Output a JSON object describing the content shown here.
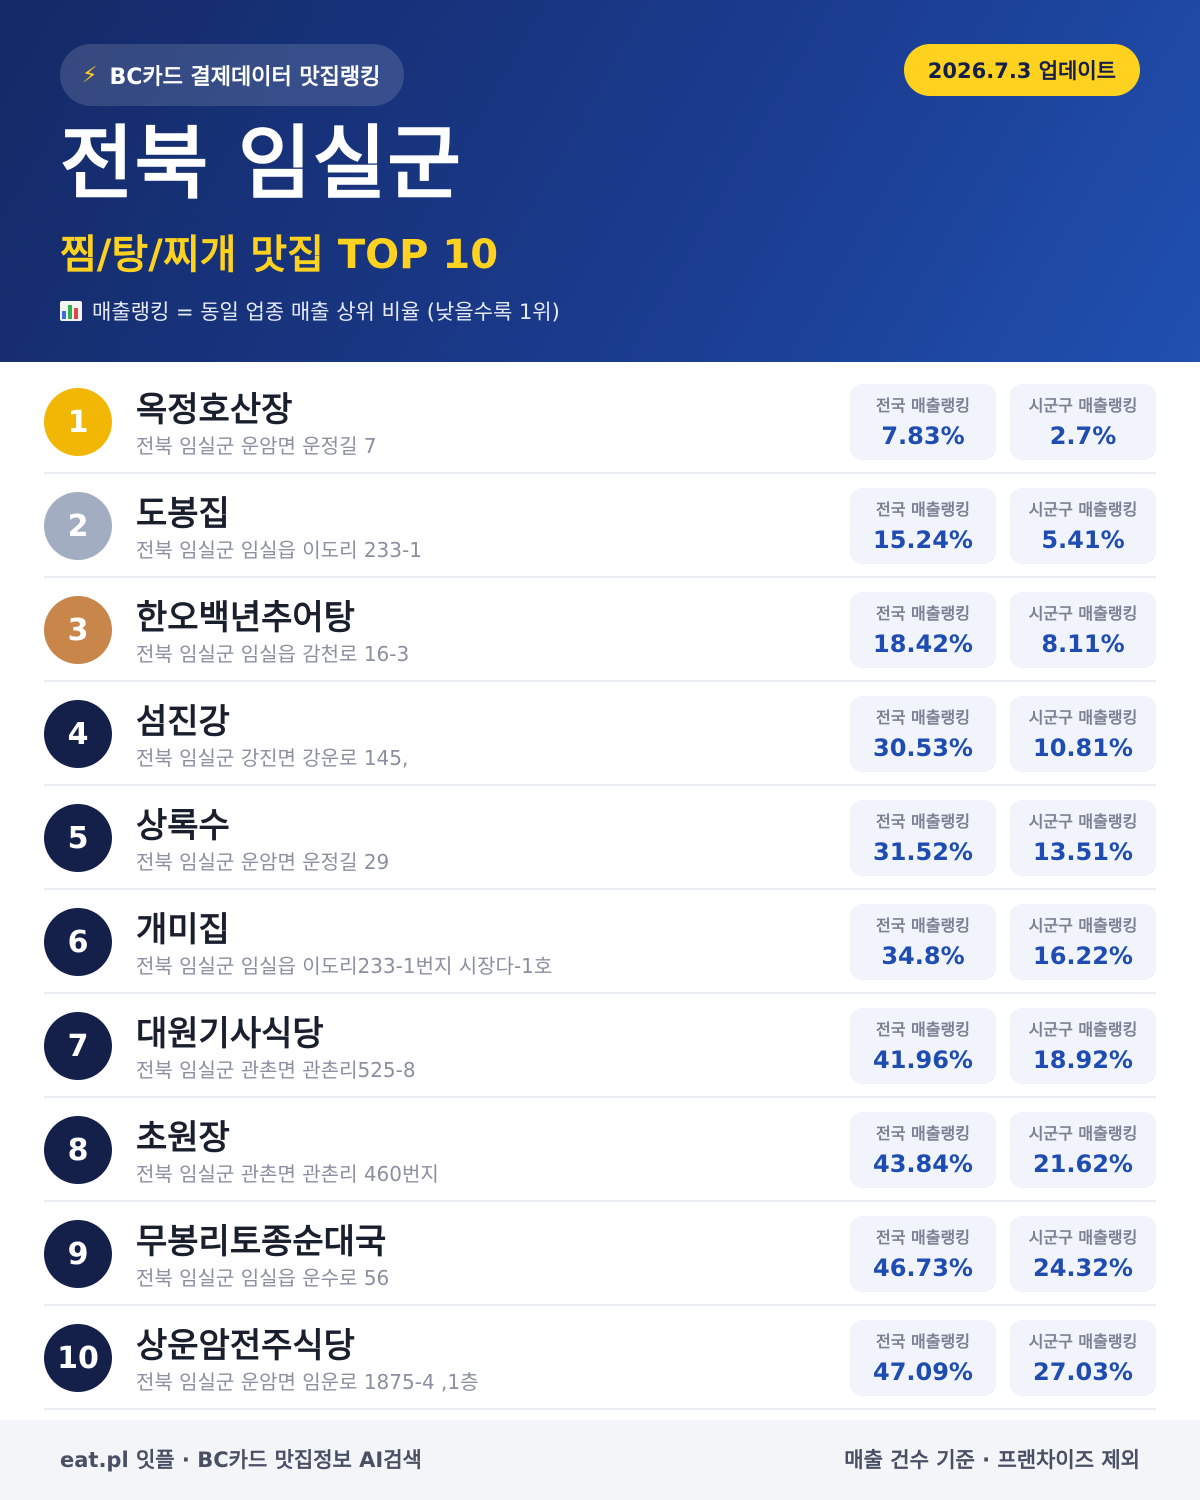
{
  "header": {
    "source_label": "BC카드 결제데이터 맛집랭킹",
    "update_label": "2026.7.3 업데이트",
    "region": "전북 임실군",
    "subtitle": "찜/탕/찌개 맛집 TOP 10",
    "legend_text": "매출랭킹 = 동일 업종 매출 상위 비율 (낮을수록 1위)",
    "icons": {
      "source": "lightning-bolt-icon",
      "legend": "bar-chart-icon"
    }
  },
  "colors": {
    "gold": "#f2b705",
    "silver": "#a3adc2",
    "bronze": "#c8864a",
    "navy": "#14204a",
    "accent_yellow": "#ffd21f",
    "value_blue": "#1e4cb0"
  },
  "stat_labels": {
    "national": "전국 매출랭킹",
    "local": "시군구 매출랭킹"
  },
  "restaurants": [
    {
      "rank": "1",
      "name": "옥정호산장",
      "address": "전북 임실군 운암면 운정길 7",
      "national": "7.83%",
      "local": "2.7%"
    },
    {
      "rank": "2",
      "name": "도봉집",
      "address": "전북 임실군 임실읍 이도리 233-1",
      "national": "15.24%",
      "local": "5.41%"
    },
    {
      "rank": "3",
      "name": "한오백년추어탕",
      "address": "전북 임실군 임실읍 감천로 16-3",
      "national": "18.42%",
      "local": "8.11%"
    },
    {
      "rank": "4",
      "name": "섬진강",
      "address": "전북 임실군 강진면 강운로 145,",
      "national": "30.53%",
      "local": "10.81%"
    },
    {
      "rank": "5",
      "name": "상록수",
      "address": "전북 임실군 운암면 운정길 29",
      "national": "31.52%",
      "local": "13.51%"
    },
    {
      "rank": "6",
      "name": "개미집",
      "address": "전북 임실군 임실읍 이도리233-1번지 시장다-1호",
      "national": "34.8%",
      "local": "16.22%"
    },
    {
      "rank": "7",
      "name": "대원기사식당",
      "address": "전북 임실군 관촌면 관촌리525-8",
      "national": "41.96%",
      "local": "18.92%"
    },
    {
      "rank": "8",
      "name": "초원장",
      "address": "전북 임실군 관촌면 관촌리 460번지",
      "national": "43.84%",
      "local": "21.62%"
    },
    {
      "rank": "9",
      "name": "무봉리토종순대국",
      "address": "전북 임실군 임실읍 운수로 56",
      "national": "46.73%",
      "local": "24.32%"
    },
    {
      "rank": "10",
      "name": "상운암전주식당",
      "address": "전북 임실군 운암면 임운로 1875-4 ,1층",
      "national": "47.09%",
      "local": "27.03%"
    }
  ],
  "footer": {
    "left": "eat.pl 잇플 · BC카드 맛집정보 AI검색",
    "right": "매출 건수 기준 · 프랜차이즈 제외"
  }
}
